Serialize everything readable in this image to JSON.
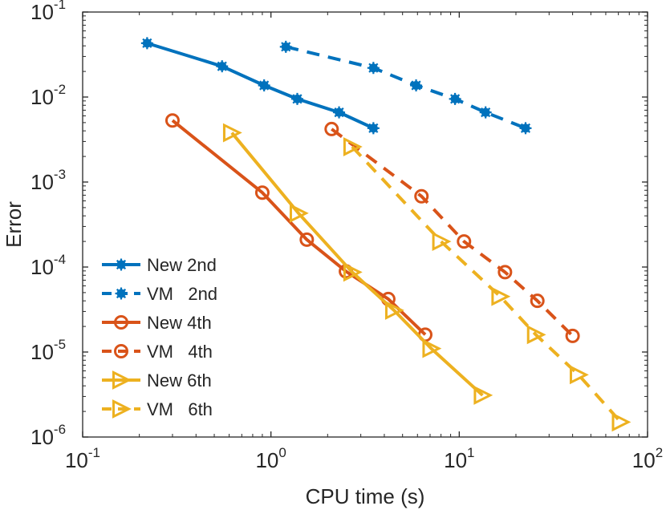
{
  "chart_data": {
    "type": "line",
    "xlabel": "CPU time (s)",
    "ylabel": "Error",
    "xscale": "log",
    "yscale": "log",
    "xlim": [
      0.1,
      100
    ],
    "ylim": [
      1e-06,
      0.1
    ],
    "x_ticks": [
      {
        "base": "10",
        "exp": "-1",
        "value": 0.1
      },
      {
        "base": "10",
        "exp": "0",
        "value": 1
      },
      {
        "base": "10",
        "exp": "1",
        "value": 10
      },
      {
        "base": "10",
        "exp": "2",
        "value": 100
      }
    ],
    "y_ticks": [
      {
        "base": "10",
        "exp": "-6",
        "value": 1e-06
      },
      {
        "base": "10",
        "exp": "-5",
        "value": 1e-05
      },
      {
        "base": "10",
        "exp": "-4",
        "value": 0.0001
      },
      {
        "base": "10",
        "exp": "-3",
        "value": 0.001
      },
      {
        "base": "10",
        "exp": "-2",
        "value": 0.01
      },
      {
        "base": "10",
        "exp": "-1",
        "value": 0.1
      }
    ],
    "grid": false,
    "legend_position": "bottom-left",
    "series": [
      {
        "name": "New 2nd",
        "color": "#0072BD",
        "dash": "solid",
        "marker": "asterisk",
        "x": [
          0.22,
          0.55,
          0.92,
          1.38,
          2.3,
          3.5
        ],
        "y": [
          0.043,
          0.023,
          0.0137,
          0.0095,
          0.0066,
          0.0043
        ]
      },
      {
        "name": "VM   2nd",
        "color": "#0072BD",
        "dash": "dashed",
        "marker": "asterisk",
        "x": [
          1.2,
          3.5,
          5.9,
          9.5,
          13.8,
          22.5
        ],
        "y": [
          0.039,
          0.022,
          0.0137,
          0.0095,
          0.0066,
          0.0043
        ]
      },
      {
        "name": "New 4th",
        "color": "#D95319",
        "dash": "solid",
        "marker": "circle",
        "x": [
          0.3,
          0.9,
          1.55,
          2.5,
          4.2,
          6.6
        ],
        "y": [
          0.0053,
          0.00075,
          0.00021,
          8.9e-05,
          4.2e-05,
          1.6e-05
        ]
      },
      {
        "name": "VM   4th",
        "color": "#D95319",
        "dash": "dashed",
        "marker": "circle",
        "x": [
          2.1,
          6.3,
          10.6,
          17.5,
          26.0,
          40.0
        ],
        "y": [
          0.0042,
          0.00068,
          0.0002,
          8.7e-05,
          4e-05,
          1.55e-05
        ]
      },
      {
        "name": "New 6th",
        "color": "#EDB120",
        "dash": "solid",
        "marker": "triangle-right",
        "x": [
          0.62,
          1.4,
          2.7,
          4.5,
          7.1,
          13.3
        ],
        "y": [
          0.0038,
          0.00043,
          8.7e-05,
          3.1e-05,
          1.1e-05,
          3.1e-06
        ]
      },
      {
        "name": "VM   6th",
        "color": "#EDB120",
        "dash": "dashed",
        "marker": "triangle-right",
        "x": [
          2.7,
          8.0,
          16.5,
          25.5,
          43.0,
          72.0
        ],
        "y": [
          0.0026,
          0.0002,
          4.5e-05,
          1.6e-05,
          5.4e-06,
          1.5e-06
        ]
      }
    ]
  }
}
